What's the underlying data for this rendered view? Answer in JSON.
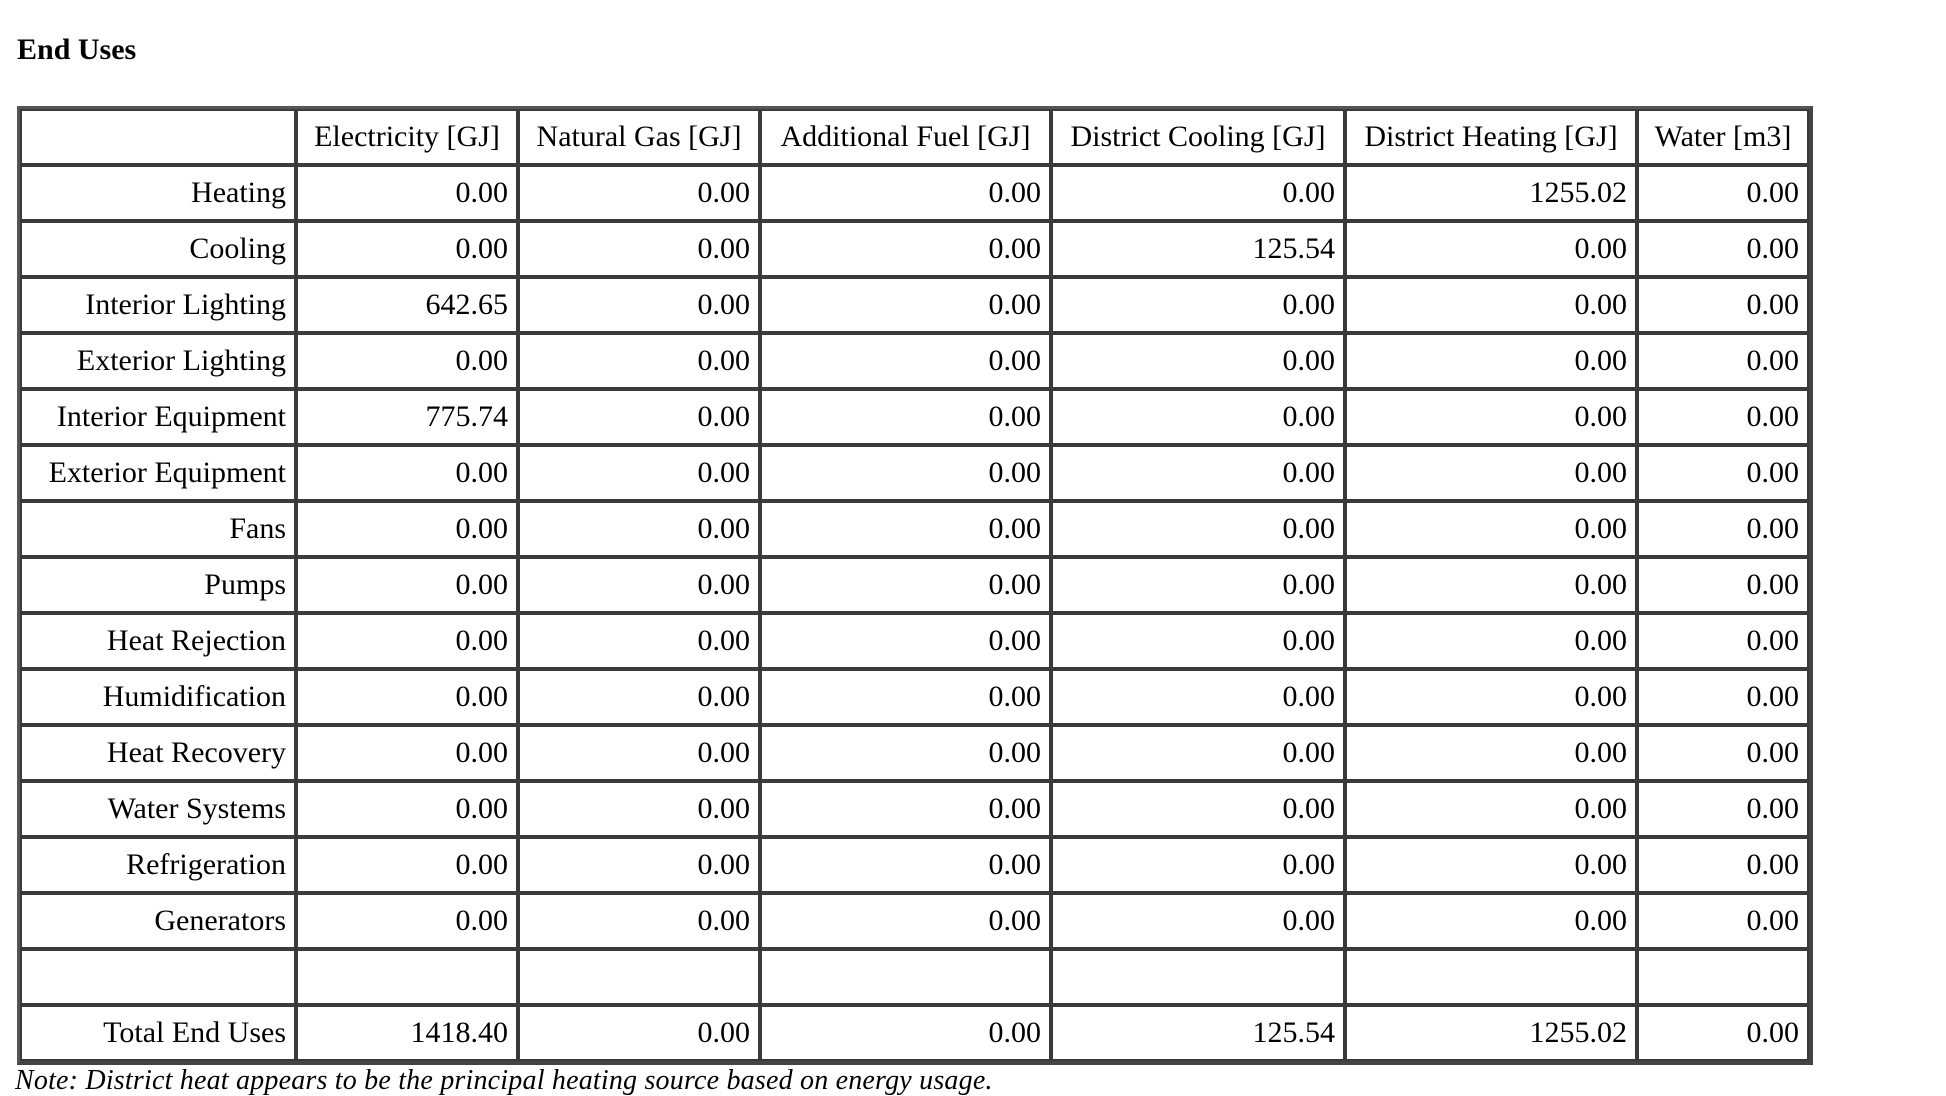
{
  "section_title": "End Uses",
  "table": {
    "columns": [
      "",
      "Electricity [GJ]",
      "Natural Gas [GJ]",
      "Additional Fuel [GJ]",
      "District Cooling [GJ]",
      "District Heating [GJ]",
      "Water [m3]"
    ],
    "rows": [
      [
        "Heating",
        "0.00",
        "0.00",
        "0.00",
        "0.00",
        "1255.02",
        "0.00"
      ],
      [
        "Cooling",
        "0.00",
        "0.00",
        "0.00",
        "125.54",
        "0.00",
        "0.00"
      ],
      [
        "Interior Lighting",
        "642.65",
        "0.00",
        "0.00",
        "0.00",
        "0.00",
        "0.00"
      ],
      [
        "Exterior Lighting",
        "0.00",
        "0.00",
        "0.00",
        "0.00",
        "0.00",
        "0.00"
      ],
      [
        "Interior Equipment",
        "775.74",
        "0.00",
        "0.00",
        "0.00",
        "0.00",
        "0.00"
      ],
      [
        "Exterior Equipment",
        "0.00",
        "0.00",
        "0.00",
        "0.00",
        "0.00",
        "0.00"
      ],
      [
        "Fans",
        "0.00",
        "0.00",
        "0.00",
        "0.00",
        "0.00",
        "0.00"
      ],
      [
        "Pumps",
        "0.00",
        "0.00",
        "0.00",
        "0.00",
        "0.00",
        "0.00"
      ],
      [
        "Heat Rejection",
        "0.00",
        "0.00",
        "0.00",
        "0.00",
        "0.00",
        "0.00"
      ],
      [
        "Humidification",
        "0.00",
        "0.00",
        "0.00",
        "0.00",
        "0.00",
        "0.00"
      ],
      [
        "Heat Recovery",
        "0.00",
        "0.00",
        "0.00",
        "0.00",
        "0.00",
        "0.00"
      ],
      [
        "Water Systems",
        "0.00",
        "0.00",
        "0.00",
        "0.00",
        "0.00",
        "0.00"
      ],
      [
        "Refrigeration",
        "0.00",
        "0.00",
        "0.00",
        "0.00",
        "0.00",
        "0.00"
      ],
      [
        "Generators",
        "0.00",
        "0.00",
        "0.00",
        "0.00",
        "0.00",
        "0.00"
      ],
      [
        "",
        "",
        "",
        "",
        "",
        "",
        ""
      ],
      [
        "Total End Uses",
        "1418.40",
        "0.00",
        "0.00",
        "125.54",
        "1255.02",
        "0.00"
      ]
    ]
  },
  "note": "Note: District heat appears to be the principal heating source based on energy usage."
}
